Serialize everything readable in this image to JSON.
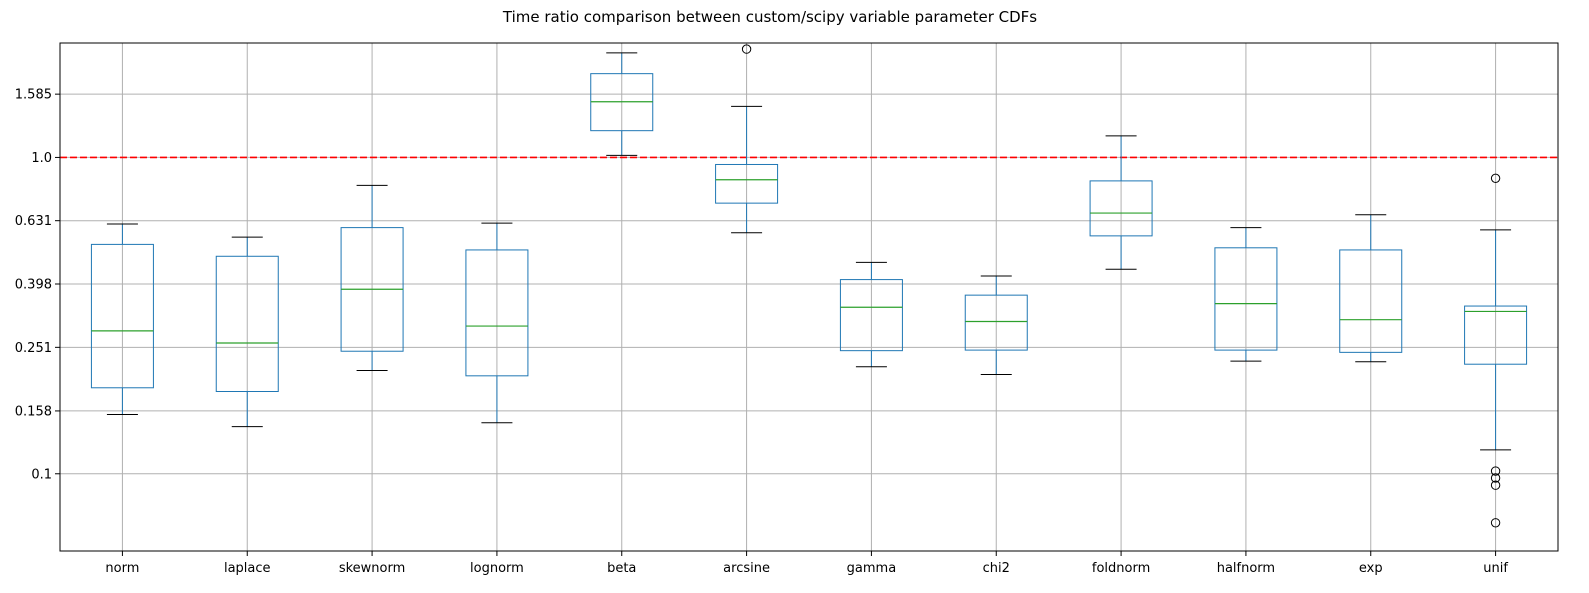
{
  "chart_data": {
    "type": "box",
    "title": "Time ratio comparison between custom/scipy variable parameter CDFs",
    "xlabel": "",
    "ylabel": "",
    "y_scale": "log",
    "ylim": [
      0.057,
      2.3
    ],
    "y_ticks": [
      0.1,
      0.158,
      0.251,
      0.398,
      0.631,
      1.0,
      1.585
    ],
    "y_tick_labels": [
      "0.1",
      "0.158",
      "0.251",
      "0.398",
      "0.631",
      "1.0",
      "1.585"
    ],
    "grid": true,
    "reference_line": {
      "y": 1.0,
      "color": "#ff0000",
      "style": "dashed"
    },
    "colors": {
      "box": "#1f77b4",
      "median": "#2ca02c",
      "whisker": "#1f77b4",
      "cap": "#000000",
      "outlier": "#000000",
      "grid": "#b0b0b0"
    },
    "categories": [
      "norm",
      "laplace",
      "skewnorm",
      "lognorm",
      "beta",
      "arcsine",
      "gamma",
      "chi2",
      "foldnorm",
      "halfnorm",
      "exp",
      "unif"
    ],
    "boxes": [
      {
        "name": "norm",
        "whislo": 0.154,
        "q1": 0.187,
        "med": 0.283,
        "q3": 0.531,
        "whishi": 0.616,
        "fliers": []
      },
      {
        "name": "laplace",
        "whislo": 0.141,
        "q1": 0.182,
        "med": 0.259,
        "q3": 0.487,
        "whishi": 0.56,
        "fliers": []
      },
      {
        "name": "skewnorm",
        "whislo": 0.212,
        "q1": 0.244,
        "med": 0.383,
        "q3": 0.6,
        "whishi": 0.816,
        "fliers": []
      },
      {
        "name": "lognorm",
        "whislo": 0.145,
        "q1": 0.204,
        "med": 0.293,
        "q3": 0.51,
        "whishi": 0.62,
        "fliers": []
      },
      {
        "name": "beta",
        "whislo": 1.015,
        "q1": 1.215,
        "med": 1.5,
        "q3": 1.84,
        "whishi": 2.14,
        "fliers": []
      },
      {
        "name": "arcsine",
        "whislo": 0.578,
        "q1": 0.717,
        "med": 0.85,
        "q3": 0.95,
        "whishi": 1.45,
        "fliers": [
          2.2
        ]
      },
      {
        "name": "gamma",
        "whislo": 0.218,
        "q1": 0.245,
        "med": 0.336,
        "q3": 0.411,
        "whishi": 0.466,
        "fliers": []
      },
      {
        "name": "chi2",
        "whislo": 0.206,
        "q1": 0.246,
        "med": 0.303,
        "q3": 0.367,
        "whishi": 0.422,
        "fliers": []
      },
      {
        "name": "foldnorm",
        "whislo": 0.443,
        "q1": 0.565,
        "med": 0.667,
        "q3": 0.843,
        "whishi": 1.17,
        "fliers": []
      },
      {
        "name": "halfnorm",
        "whislo": 0.227,
        "q1": 0.246,
        "med": 0.345,
        "q3": 0.518,
        "whishi": 0.6,
        "fliers": []
      },
      {
        "name": "exp",
        "whislo": 0.226,
        "q1": 0.242,
        "med": 0.307,
        "q3": 0.51,
        "whishi": 0.659,
        "fliers": []
      },
      {
        "name": "unif",
        "whislo": 0.119,
        "q1": 0.222,
        "med": 0.326,
        "q3": 0.339,
        "whishi": 0.59,
        "fliers": [
          0.859,
          0.102,
          0.097,
          0.092,
          0.07
        ]
      }
    ]
  }
}
